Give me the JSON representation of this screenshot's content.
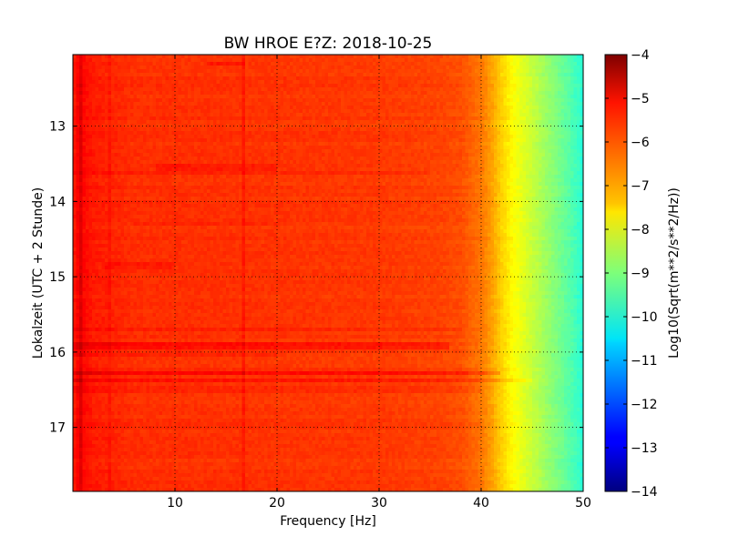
{
  "chart_data": {
    "type": "heatmap",
    "title": "BW HROE E?Z: 2018-10-25",
    "xlabel": "Frequency [Hz]",
    "ylabel": "Lokalzeit (UTC + 2 Stunde)",
    "xlim": [
      0,
      50
    ],
    "ylim": [
      12.05,
      17.85
    ],
    "y_inverted": true,
    "x_ticks": [
      10,
      20,
      30,
      40,
      50
    ],
    "x_tick_labels": [
      "10",
      "20",
      "30",
      "40",
      "50"
    ],
    "y_ticks": [
      13,
      14,
      15,
      16,
      17
    ],
    "y_tick_labels": [
      "13",
      "14",
      "15",
      "16",
      "17"
    ],
    "grid": true,
    "colormap": "jet",
    "colorbar": {
      "label": "Log10(Sqrt(m**2/s**2/Hz))",
      "range": [
        -14,
        -4
      ],
      "ticks": [
        -4,
        -5,
        -6,
        -7,
        -8,
        -9,
        -10,
        -11,
        -12,
        -13,
        -14
      ],
      "tick_labels": [
        "−4",
        "−5",
        "−6",
        "−7",
        "−8",
        "−9",
        "−10",
        "−11",
        "−12",
        "−13",
        "−14"
      ]
    },
    "spectral_profile": {
      "frequency_hz": [
        0,
        0.5,
        1,
        2,
        4,
        6,
        10,
        20,
        30,
        36,
        38,
        39,
        40,
        41,
        42,
        43,
        44,
        45,
        46,
        47,
        48,
        49,
        49.8,
        50
      ],
      "log10_amplitude": [
        -5.6,
        -5.2,
        -5.3,
        -5.5,
        -5.6,
        -5.7,
        -5.7,
        -5.75,
        -5.8,
        -5.9,
        -6.0,
        -6.2,
        -6.4,
        -6.8,
        -7.3,
        -7.7,
        -8.0,
        -8.3,
        -8.6,
        -8.9,
        -9.2,
        -9.5,
        -9.8,
        -10.0
      ]
    },
    "line_features": [
      {
        "frequency_hz": 16.7,
        "delta": 0.25
      },
      {
        "frequency_hz": 3.5,
        "delta": 0.15
      },
      {
        "frequency_hz": 0.8,
        "delta": 0.3
      }
    ],
    "time_features": [
      {
        "time_h": 12.17,
        "f_from_hz": 13,
        "f_to_hz": 17,
        "delta": 0.3
      },
      {
        "time_h": 13.55,
        "f_from_hz": 8,
        "f_to_hz": 20,
        "delta": 0.2
      },
      {
        "time_h": 13.62,
        "f_from_hz": 0,
        "f_to_hz": 35,
        "delta": 0.15
      },
      {
        "time_h": 14.3,
        "f_from_hz": 6,
        "f_to_hz": 20,
        "delta": 0.15
      },
      {
        "time_h": 14.85,
        "f_from_hz": 3,
        "f_to_hz": 10,
        "delta": 0.2
      },
      {
        "time_h": 15.7,
        "f_from_hz": 0,
        "f_to_hz": 38,
        "delta": 0.15
      },
      {
        "time_h": 15.92,
        "f_from_hz": 0,
        "f_to_hz": 37,
        "delta": 0.35
      },
      {
        "time_h": 16.05,
        "f_from_hz": 0,
        "f_to_hz": 20,
        "delta": 0.2
      },
      {
        "time_h": 16.28,
        "f_from_hz": 0,
        "f_to_hz": 42,
        "delta": 0.45
      },
      {
        "time_h": 16.38,
        "f_from_hz": 0,
        "f_to_hz": 45,
        "delta": 0.3
      },
      {
        "time_h": 16.5,
        "f_from_hz": 0,
        "f_to_hz": 40,
        "delta": 0.15
      }
    ]
  }
}
